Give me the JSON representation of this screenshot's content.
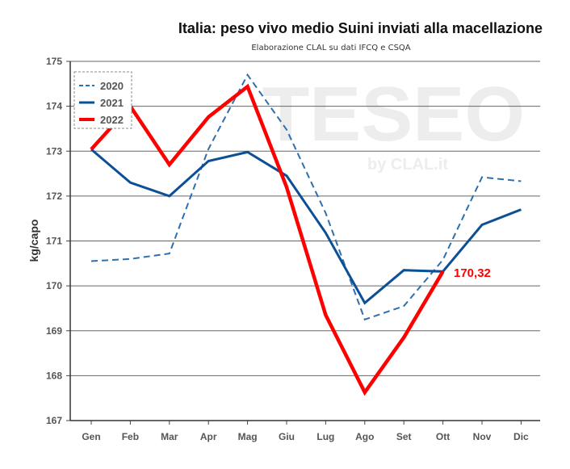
{
  "chart_data": {
    "type": "line",
    "title": "Italia: peso vivo medio Suini inviati alla macellazione",
    "subtitle": "Elaborazione CLAL su dati IFCQ e CSQA",
    "ylabel": "kg/capo",
    "xlabel": "",
    "ylim": [
      167,
      175
    ],
    "yticks": [
      "167",
      "168",
      "169",
      "170",
      "171",
      "172",
      "173",
      "174",
      "175"
    ],
    "categories": [
      "Gen",
      "Feb",
      "Mar",
      "Apr",
      "Mag",
      "Giu",
      "Lug",
      "Ago",
      "Set",
      "Ott",
      "Nov",
      "Dic"
    ],
    "series": [
      {
        "name": "2020",
        "color": "#2f6fad",
        "style": "dashed",
        "values": [
          170.55,
          170.6,
          170.72,
          173.05,
          174.7,
          173.48,
          171.62,
          169.25,
          169.55,
          170.58,
          172.42,
          172.33
        ]
      },
      {
        "name": "2021",
        "color": "#0b4f96",
        "style": "solid",
        "values": [
          173.04,
          172.3,
          172.0,
          172.78,
          172.98,
          172.45,
          171.18,
          169.62,
          170.35,
          170.32,
          171.36,
          171.7
        ]
      },
      {
        "name": "2022",
        "color": "#ff0000",
        "style": "solid-bold",
        "values": [
          173.04,
          174.0,
          172.7,
          173.76,
          174.44,
          172.2,
          169.35,
          167.63,
          168.85,
          170.32,
          null,
          null
        ]
      }
    ],
    "annotation": {
      "text": "170,32",
      "color": "#ff0000"
    },
    "legend_position": "top-left",
    "grid": true,
    "watermark": {
      "main": "TESEO",
      "sub": "by CLAL.it"
    }
  }
}
